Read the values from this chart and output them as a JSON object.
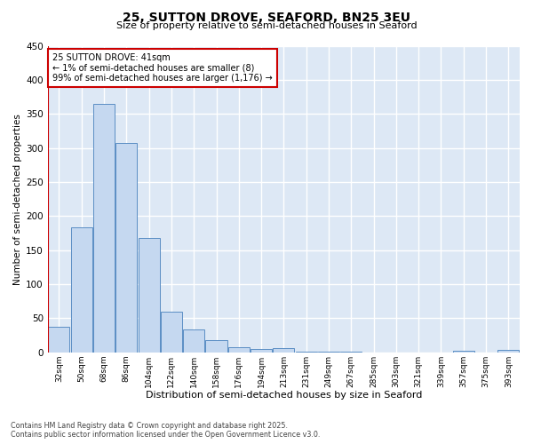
{
  "title": "25, SUTTON DROVE, SEAFORD, BN25 3EU",
  "subtitle": "Size of property relative to semi-detached houses in Seaford",
  "xlabel": "Distribution of semi-detached houses by size in Seaford",
  "ylabel": "Number of semi-detached properties",
  "categories": [
    "32sqm",
    "50sqm",
    "68sqm",
    "86sqm",
    "104sqm",
    "122sqm",
    "140sqm",
    "158sqm",
    "176sqm",
    "194sqm",
    "213sqm",
    "231sqm",
    "249sqm",
    "267sqm",
    "285sqm",
    "303sqm",
    "321sqm",
    "339sqm",
    "357sqm",
    "375sqm",
    "393sqm"
  ],
  "values": [
    38,
    184,
    365,
    307,
    168,
    59,
    33,
    18,
    7,
    5,
    6,
    1,
    1,
    1,
    0,
    0,
    0,
    0,
    2,
    0,
    3
  ],
  "bar_color": "#c5d8f0",
  "bar_edge_color": "#5b8ec4",
  "bg_color": "#dde8f5",
  "grid_color": "#ffffff",
  "red_line_color": "#cc0000",
  "annotation_text_line1": "25 SUTTON DROVE: 41sqm",
  "annotation_text_line2": "← 1% of semi-detached houses are smaller (8)",
  "annotation_text_line3": "99% of semi-detached houses are larger (1,176) →",
  "annotation_border_color": "#cc0000",
  "footer_line1": "Contains HM Land Registry data © Crown copyright and database right 2025.",
  "footer_line2": "Contains public sector information licensed under the Open Government Licence v3.0.",
  "ylim": [
    0,
    450
  ],
  "yticks": [
    0,
    50,
    100,
    150,
    200,
    250,
    300,
    350,
    400,
    450
  ]
}
